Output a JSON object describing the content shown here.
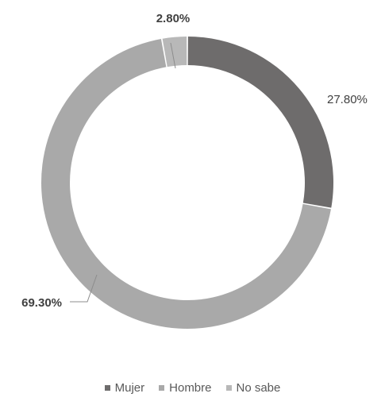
{
  "chart_data": {
    "type": "pie",
    "variant": "donut",
    "title": "",
    "series": [
      {
        "name": "Mujer",
        "value": 27.8,
        "label": "27.80%",
        "color": "#6e6c6c"
      },
      {
        "name": "Hombre",
        "value": 69.3,
        "label": "69.30%",
        "color": "#a9a9a9"
      },
      {
        "name": "No sabe",
        "value": 2.8,
        "label": "2.80%",
        "color": "#b8b8b8"
      }
    ],
    "legend_position": "bottom",
    "label_color": "#404040",
    "leader_line_color": "#8c8c8c"
  }
}
